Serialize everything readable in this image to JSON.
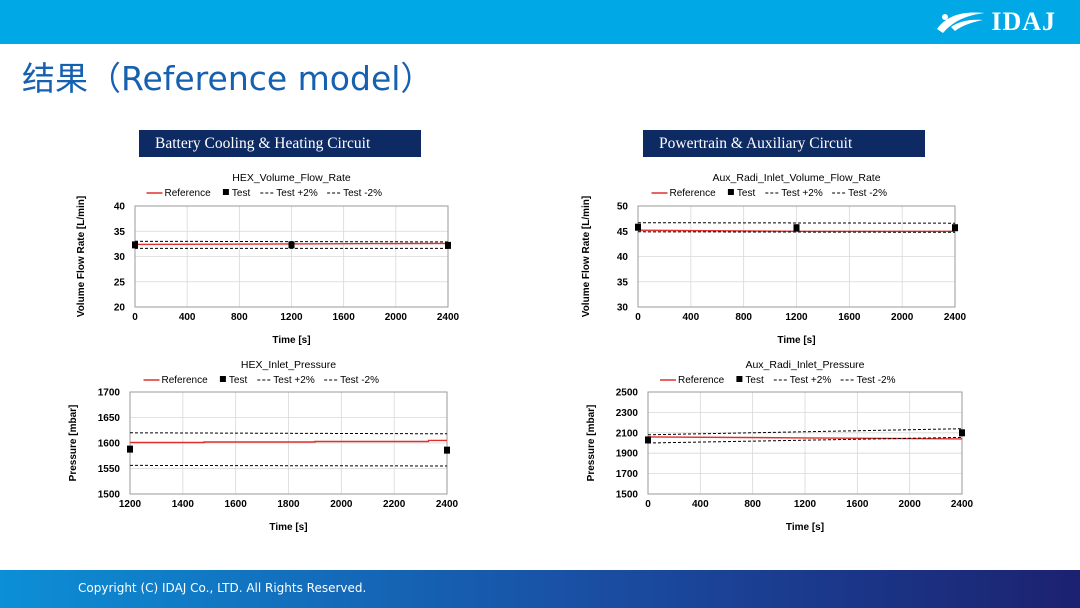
{
  "header": {
    "logo_text": "IDAJ",
    "logo_icon": "idaj-swoosh-icon"
  },
  "page_title": "结果（Reference model）",
  "sections": {
    "left": "Battery Cooling & Heating Circuit",
    "right": "Powertrain & Auxiliary Circuit"
  },
  "footer": {
    "copyright": "Copyright (C)  IDAJ Co., LTD. All Rights Reserved."
  },
  "colors": {
    "topbar": "#00a8e6",
    "section_bg": "#0e2a63",
    "title": "#1560b0",
    "reference": "#e0302e",
    "test": "#000000"
  },
  "chart_data": [
    {
      "type": "line",
      "title": "HEX_Volume_Flow_Rate",
      "xlabel": "Time [s]",
      "ylabel": "Volume Flow Rate [L/min]",
      "xlim": [
        0,
        2400
      ],
      "ylim": [
        20,
        40
      ],
      "xticks": [
        0,
        400,
        800,
        1200,
        1600,
        2000,
        2400
      ],
      "yticks": [
        20,
        25,
        30,
        35,
        40
      ],
      "grid": true,
      "legend": "top",
      "legend_labels": [
        "Reference",
        "Test",
        "Test +2%",
        "Test -2%"
      ],
      "series": [
        {
          "name": "Reference",
          "style": "line",
          "x": [
            0,
            1200,
            2400
          ],
          "y": [
            32.4,
            32.5,
            32.6
          ]
        },
        {
          "name": "Test",
          "style": "marker",
          "x": [
            0,
            1200,
            2400
          ],
          "y": [
            32.3,
            32.3,
            32.2
          ]
        },
        {
          "name": "Test +2%",
          "style": "dashed",
          "x": [
            0,
            2400
          ],
          "y": [
            33.0,
            32.9
          ]
        },
        {
          "name": "Test -2%",
          "style": "dashed",
          "x": [
            0,
            2400
          ],
          "y": [
            31.6,
            31.6
          ]
        }
      ]
    },
    {
      "type": "line",
      "title": "Aux_Radi_Inlet_Volume_Flow_Rate",
      "xlabel": "Time [s]",
      "ylabel": "Volume Flow Rate [L/min]",
      "xlim": [
        0,
        2400
      ],
      "ylim": [
        30,
        50
      ],
      "xticks": [
        0,
        400,
        800,
        1200,
        1600,
        2000,
        2400
      ],
      "yticks": [
        30,
        35,
        40,
        45,
        50
      ],
      "grid": true,
      "legend": "top",
      "legend_labels": [
        "Reference",
        "Test",
        "Test +2%",
        "Test -2%"
      ],
      "series": [
        {
          "name": "Reference",
          "style": "line",
          "x": [
            0,
            1200,
            2400
          ],
          "y": [
            45.2,
            45.0,
            45.0
          ]
        },
        {
          "name": "Test",
          "style": "marker",
          "x": [
            0,
            1200,
            2400
          ],
          "y": [
            45.8,
            45.7,
            45.7
          ]
        },
        {
          "name": "Test +2%",
          "style": "dashed",
          "x": [
            0,
            2400
          ],
          "y": [
            46.7,
            46.6
          ]
        },
        {
          "name": "Test -2%",
          "style": "dashed",
          "x": [
            0,
            2400
          ],
          "y": [
            44.9,
            44.8
          ]
        }
      ]
    },
    {
      "type": "line",
      "title": "HEX_Inlet_Pressure",
      "xlabel": "Time [s]",
      "ylabel": "Pressure [mbar]",
      "xlim": [
        1200,
        2400
      ],
      "ylim": [
        1500,
        1700
      ],
      "xticks": [
        1200,
        1400,
        1600,
        1800,
        2000,
        2200,
        2400
      ],
      "yticks": [
        1500,
        1550,
        1600,
        1650,
        1700
      ],
      "grid": true,
      "legend": "top",
      "legend_labels": [
        "Reference",
        "Test",
        "Test +2%",
        "Test -2%"
      ],
      "series": [
        {
          "name": "Reference",
          "style": "line",
          "x": [
            1200,
            1480,
            1480,
            1900,
            1900,
            2330,
            2330,
            2400
          ],
          "y": [
            1601,
            1601,
            1602,
            1602,
            1603,
            1603,
            1605,
            1605
          ]
        },
        {
          "name": "Test",
          "style": "marker",
          "x": [
            1200,
            2400
          ],
          "y": [
            1588,
            1586
          ]
        },
        {
          "name": "Test +2%",
          "style": "dashed",
          "x": [
            1200,
            2400
          ],
          "y": [
            1620,
            1618
          ]
        },
        {
          "name": "Test -2%",
          "style": "dashed",
          "x": [
            1200,
            2400
          ],
          "y": [
            1556,
            1555
          ]
        }
      ]
    },
    {
      "type": "line",
      "title": "Aux_Radi_Inlet_Pressure",
      "xlabel": "Time [s]",
      "ylabel": "Pressure [mbar]",
      "xlim": [
        0,
        2400
      ],
      "ylim": [
        1500,
        2500
      ],
      "xticks": [
        0,
        400,
        800,
        1200,
        1600,
        2000,
        2400
      ],
      "yticks": [
        1500,
        1700,
        1900,
        2100,
        2300,
        2500
      ],
      "grid": true,
      "legend": "top",
      "legend_labels": [
        "Reference",
        "Test",
        "Test +2%",
        "Test -2%"
      ],
      "series": [
        {
          "name": "Reference",
          "style": "line",
          "x": [
            0,
            1200,
            2400
          ],
          "y": [
            2060,
            2050,
            2040
          ]
        },
        {
          "name": "Test",
          "style": "marker",
          "x": [
            0,
            2400
          ],
          "y": [
            2030,
            2100
          ]
        },
        {
          "name": "Test +2%",
          "style": "dashed",
          "x": [
            0,
            2400
          ],
          "y": [
            2080,
            2140
          ]
        },
        {
          "name": "Test -2%",
          "style": "dashed",
          "x": [
            0,
            2400
          ],
          "y": [
            2000,
            2055
          ]
        }
      ]
    }
  ]
}
